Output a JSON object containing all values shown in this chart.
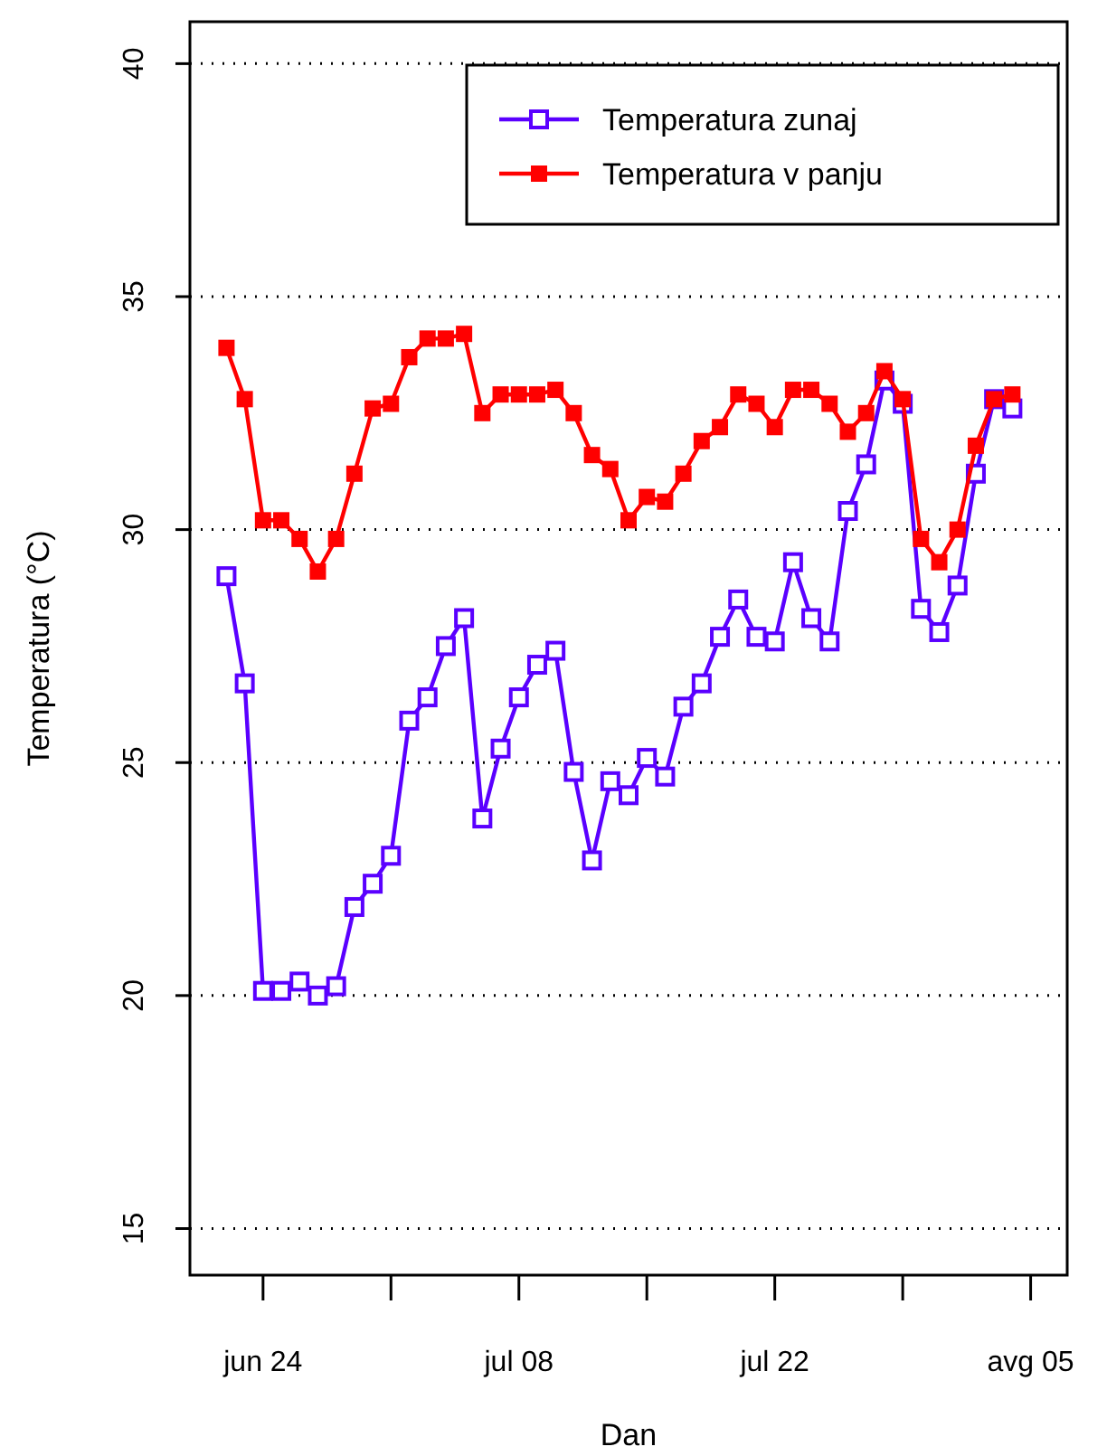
{
  "chart_data": {
    "type": "line",
    "xlabel": "Dan",
    "ylabel": "Temperatura (°C)",
    "x": [
      "--06-22",
      "--06-23",
      "--06-24",
      "--06-25",
      "--06-26",
      "--06-27",
      "--06-28",
      "--06-29",
      "--06-30",
      "--07-01",
      "--07-02",
      "--07-03",
      "--07-04",
      "--07-05",
      "--07-06",
      "--07-07",
      "--07-08",
      "--07-09",
      "--07-10",
      "--07-11",
      "--07-12",
      "--07-13",
      "--07-14",
      "--07-15",
      "--07-16",
      "--07-17",
      "--07-18",
      "--07-19",
      "--07-20",
      "--07-21",
      "--07-22",
      "--07-23",
      "--07-24",
      "--07-25",
      "--07-26",
      "--07-27",
      "--07-28",
      "--07-29",
      "--07-30",
      "--07-31",
      "--08-01",
      "--08-02",
      "--08-03",
      "--08-04"
    ],
    "series": [
      {
        "name": "Temperatura zunaj",
        "color": "#5a00ff",
        "marker": "square",
        "values": [
          29.0,
          26.7,
          20.1,
          20.1,
          20.3,
          20.0,
          20.2,
          21.9,
          22.4,
          23.0,
          25.9,
          26.4,
          27.5,
          28.1,
          23.8,
          25.3,
          26.4,
          27.1,
          27.4,
          24.8,
          22.9,
          24.6,
          24.3,
          25.1,
          24.7,
          26.2,
          26.7,
          27.7,
          28.5,
          27.7,
          27.6,
          29.3,
          28.1,
          27.6,
          30.4,
          31.4,
          33.2,
          32.7,
          28.3,
          27.8,
          28.8,
          31.2,
          32.8,
          32.6
        ]
      },
      {
        "name": "Temperatura v panju",
        "color": "#ff0000",
        "marker": "square",
        "values": [
          33.9,
          32.8,
          30.2,
          30.2,
          29.8,
          29.1,
          29.8,
          31.2,
          32.6,
          32.7,
          33.7,
          34.1,
          34.1,
          34.2,
          32.5,
          32.9,
          32.9,
          32.9,
          33.0,
          32.5,
          31.6,
          31.3,
          30.2,
          30.7,
          30.6,
          31.2,
          31.9,
          32.2,
          32.9,
          32.7,
          32.2,
          33.0,
          33.0,
          32.7,
          32.1,
          32.5,
          33.4,
          32.8,
          29.8,
          29.3,
          30.0,
          31.8,
          32.8,
          32.9
        ]
      }
    ],
    "xlim": [
      "--06-20",
      "--08-07"
    ],
    "xticks": [
      {
        "value": "--06-24",
        "label": "jun 24"
      },
      {
        "value": "--07-01",
        "label": null
      },
      {
        "value": "--07-08",
        "label": "jul 08"
      },
      {
        "value": "--07-15",
        "label": null
      },
      {
        "value": "--07-22",
        "label": "jul 22"
      },
      {
        "value": "--07-29",
        "label": null
      },
      {
        "value": "--08-05",
        "label": "avg 05"
      }
    ],
    "ylim": [
      14,
      40.9
    ],
    "yticks": [
      15,
      20,
      25,
      30,
      35,
      40
    ],
    "grid": "y",
    "legend": "top right",
    "line_style": "solid"
  }
}
